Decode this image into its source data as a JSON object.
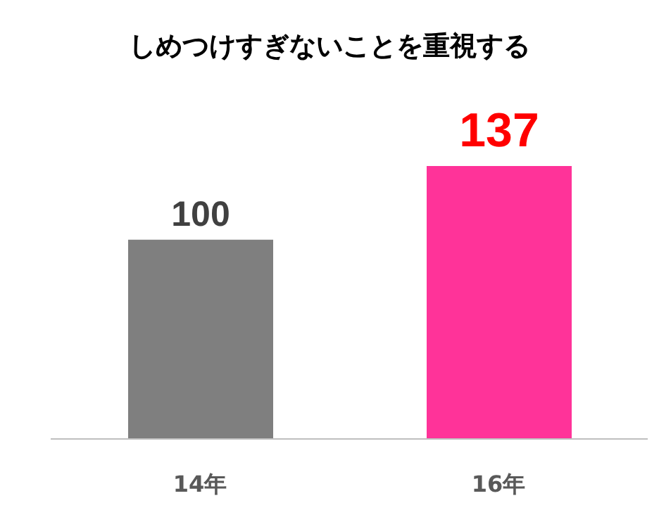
{
  "chart_data": {
    "type": "bar",
    "title": "しめつけすぎないことを重視する",
    "categories": [
      "14年",
      "16年"
    ],
    "values": [
      100,
      137
    ],
    "colors": [
      "#7f7f7f",
      "#ff3399"
    ],
    "data_labels": true
  }
}
